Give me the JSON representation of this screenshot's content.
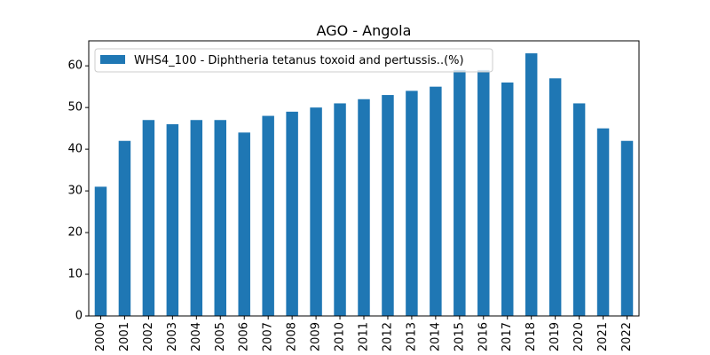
{
  "chart_data": {
    "type": "bar",
    "title": "AGO - Angola",
    "xlabel": "",
    "ylabel": "",
    "categories": [
      "2000",
      "2001",
      "2002",
      "2003",
      "2004",
      "2005",
      "2006",
      "2007",
      "2008",
      "2009",
      "2010",
      "2011",
      "2012",
      "2013",
      "2014",
      "2015",
      "2016",
      "2017",
      "2018",
      "2019",
      "2020",
      "2021",
      "2022"
    ],
    "series": [
      {
        "name": "WHS4_100 - Diphtheria tetanus toxoid and pertussis..(%)",
        "color": "#1f77b4",
        "values": [
          31,
          42,
          47,
          46,
          47,
          47,
          44,
          48,
          49,
          50,
          51,
          52,
          53,
          54,
          55,
          59,
          59,
          56,
          63,
          57,
          51,
          45,
          42
        ]
      }
    ],
    "ylim": [
      0,
      66
    ],
    "yticks": [
      0,
      10,
      20,
      30,
      40,
      50,
      60
    ],
    "grid": false,
    "legend_position": "top-left"
  }
}
